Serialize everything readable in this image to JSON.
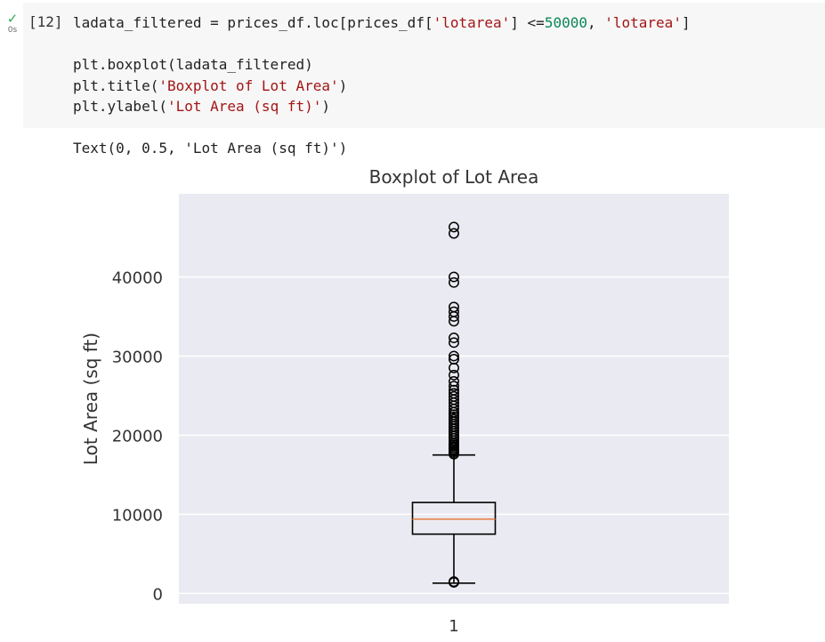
{
  "cell": {
    "status_icon": "check-icon",
    "status_color": "#34a853",
    "run_time": "0s",
    "execution_count": "[12]",
    "code_lines": [
      [
        {
          "t": "ladata_filtered = prices_df.loc[prices_df[",
          "c": ""
        },
        {
          "t": "'lotarea'",
          "c": "str"
        },
        {
          "t": "] <=",
          "c": ""
        },
        {
          "t": "50000",
          "c": "num"
        },
        {
          "t": ", ",
          "c": ""
        },
        {
          "t": "'lotarea'",
          "c": "str"
        },
        {
          "t": "]",
          "c": ""
        }
      ],
      [],
      [
        {
          "t": "plt.boxplot(ladata_filtered)",
          "c": ""
        }
      ],
      [
        {
          "t": "plt.title(",
          "c": ""
        },
        {
          "t": "'Boxplot of Lot Area'",
          "c": "str"
        },
        {
          "t": ")",
          "c": ""
        }
      ],
      [
        {
          "t": "plt.ylabel(",
          "c": ""
        },
        {
          "t": "'Lot Area (sq ft)'",
          "c": "str"
        },
        {
          "t": ")",
          "c": ""
        }
      ]
    ],
    "output_text": "Text(0, 0.5, 'Lot Area (sq ft)')"
  },
  "chart_data": {
    "type": "boxplot",
    "title": "Boxplot of Lot Area",
    "xlabel": "",
    "ylabel": "Lot Area (sq ft)",
    "categories": [
      "1"
    ],
    "ylim": [
      -1300,
      50500
    ],
    "yticks": [
      0,
      10000,
      20000,
      30000,
      40000
    ],
    "grid": true,
    "background": "#eaeaf2",
    "median_color": "#e8864a",
    "box": {
      "whisker_low": 1300,
      "q1": 7500,
      "median": 9400,
      "q3": 11500,
      "whisker_high": 17500
    },
    "outliers": [
      1400,
      1500,
      17600,
      17800,
      18000,
      18200,
      18400,
      18600,
      18800,
      19000,
      19300,
      19600,
      19900,
      20200,
      20500,
      20800,
      21100,
      21400,
      21700,
      22000,
      22300,
      22600,
      22900,
      23300,
      23700,
      24100,
      24500,
      24900,
      25300,
      25700,
      26200,
      26800,
      27600,
      28500,
      29600,
      30000,
      31700,
      32300,
      34400,
      35000,
      35600,
      36200,
      39300,
      40000,
      45500,
      46300
    ]
  }
}
